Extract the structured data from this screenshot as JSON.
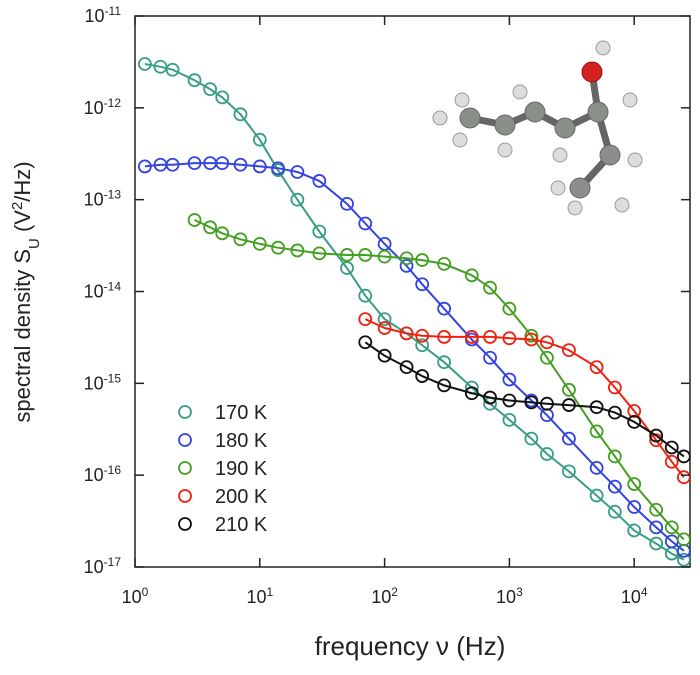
{
  "chart_data": {
    "type": "scatter",
    "xlabel": "frequency ν (Hz)",
    "ylabel": [
      "spectral density S",
      "U",
      " (V",
      "2",
      "/Hz)"
    ],
    "xscale": "log",
    "yscale": "log",
    "xlim": [
      1,
      28000
    ],
    "ylim": [
      1e-17,
      1e-11
    ],
    "xticks": [
      {
        "value": 1,
        "label": "10",
        "exponent": "0"
      },
      {
        "value": 10,
        "label": "10",
        "exponent": "1"
      },
      {
        "value": 100,
        "label": "10",
        "exponent": "2"
      },
      {
        "value": 1000,
        "label": "10",
        "exponent": "3"
      },
      {
        "value": 10000,
        "label": "10",
        "exponent": "4"
      }
    ],
    "yticks": [
      {
        "value": 1e-11,
        "label": "10",
        "exponent": "-11"
      },
      {
        "value": 1e-12,
        "label": "10",
        "exponent": "-12"
      },
      {
        "value": 1e-13,
        "label": "10",
        "exponent": "-13"
      },
      {
        "value": 1e-14,
        "label": "10",
        "exponent": "-14"
      },
      {
        "value": 1e-15,
        "label": "10",
        "exponent": "-15"
      },
      {
        "value": 1e-16,
        "label": "10",
        "exponent": "-16"
      },
      {
        "value": 1e-17,
        "label": "10",
        "exponent": "-17"
      }
    ],
    "legend": "lower left",
    "series": [
      {
        "name": "170 K",
        "color": "#3a9e86",
        "x": [
          1.2,
          1.6,
          2,
          3,
          4,
          5,
          7,
          10,
          14,
          20,
          30,
          50,
          70,
          100,
          150,
          200,
          300,
          500,
          700,
          1000,
          1500,
          2000,
          3000,
          5000,
          7000,
          10000,
          15000,
          20000,
          25000
        ],
        "values": [
          3e-12,
          2.8e-12,
          2.6e-12,
          2e-12,
          1.6e-12,
          1.3e-12,
          8.5e-13,
          4.5e-13,
          2.1e-13,
          1e-13,
          4.5e-14,
          1.8e-14,
          9e-15,
          5e-15,
          3.5e-15,
          2.6e-15,
          1.7e-15,
          9e-16,
          6e-16,
          4e-16,
          2.5e-16,
          1.7e-16,
          1.1e-16,
          6e-17,
          4e-17,
          2.5e-17,
          1.8e-17,
          1.4e-17,
          1.2e-17
        ]
      },
      {
        "name": "180 K",
        "color": "#3344e0",
        "x": [
          1.2,
          1.6,
          2,
          3,
          4,
          5,
          7,
          10,
          14,
          20,
          30,
          50,
          70,
          100,
          150,
          200,
          300,
          500,
          700,
          1000,
          1500,
          2000,
          3000,
          5000,
          7000,
          10000,
          15000,
          20000,
          25000
        ],
        "values": [
          2.3e-13,
          2.4e-13,
          2.4e-13,
          2.5e-13,
          2.5e-13,
          2.5e-13,
          2.4e-13,
          2.3e-13,
          2.2e-13,
          2e-13,
          1.6e-13,
          9e-14,
          5.5e-14,
          3.3e-14,
          1.9e-14,
          1.2e-14,
          6.5e-15,
          3e-15,
          1.9e-15,
          1.1e-15,
          6.5e-16,
          4.5e-16,
          2.5e-16,
          1.2e-16,
          7.5e-17,
          4.5e-17,
          2.7e-17,
          1.9e-17,
          1.5e-17
        ]
      },
      {
        "name": "190 K",
        "color": "#44a022",
        "x": [
          3,
          4,
          5,
          7,
          10,
          14,
          20,
          30,
          50,
          70,
          100,
          150,
          200,
          300,
          500,
          700,
          1000,
          1500,
          2000,
          3000,
          5000,
          7000,
          10000,
          15000,
          20000,
          25000
        ],
        "values": [
          6e-14,
          5e-14,
          4.3e-14,
          3.7e-14,
          3.3e-14,
          3e-14,
          2.8e-14,
          2.6e-14,
          2.5e-14,
          2.5e-14,
          2.4e-14,
          2.3e-14,
          2.2e-14,
          2e-14,
          1.5e-14,
          1.1e-14,
          6.5e-15,
          3.3e-15,
          1.9e-15,
          8.5e-16,
          3e-16,
          1.6e-16,
          8e-17,
          4.2e-17,
          2.7e-17,
          2e-17
        ]
      },
      {
        "name": "200 K",
        "color": "#ee2211",
        "x": [
          70,
          100,
          150,
          200,
          300,
          500,
          700,
          1000,
          1500,
          2000,
          3000,
          5000,
          7000,
          10000,
          15000,
          20000,
          25000
        ],
        "values": [
          5e-15,
          4e-15,
          3.5e-15,
          3.3e-15,
          3.2e-15,
          3.2e-15,
          3.2e-15,
          3.1e-15,
          3e-15,
          2.8e-15,
          2.3e-15,
          1.5e-15,
          9e-16,
          5e-16,
          2.4e-16,
          1.4e-16,
          9.5e-17
        ]
      },
      {
        "name": "210 K",
        "color": "#111111",
        "x": [
          70,
          100,
          150,
          200,
          300,
          500,
          700,
          1000,
          1500,
          2000,
          3000,
          5000,
          7000,
          10000,
          15000,
          20000,
          25000
        ],
        "values": [
          2.8e-15,
          2e-15,
          1.5e-15,
          1.2e-15,
          9.5e-16,
          7.8e-16,
          7e-16,
          6.5e-16,
          6.2e-16,
          6e-16,
          5.8e-16,
          5.5e-16,
          4.8e-16,
          3.8e-16,
          2.7e-16,
          2e-16,
          1.6e-16
        ]
      }
    ]
  }
}
